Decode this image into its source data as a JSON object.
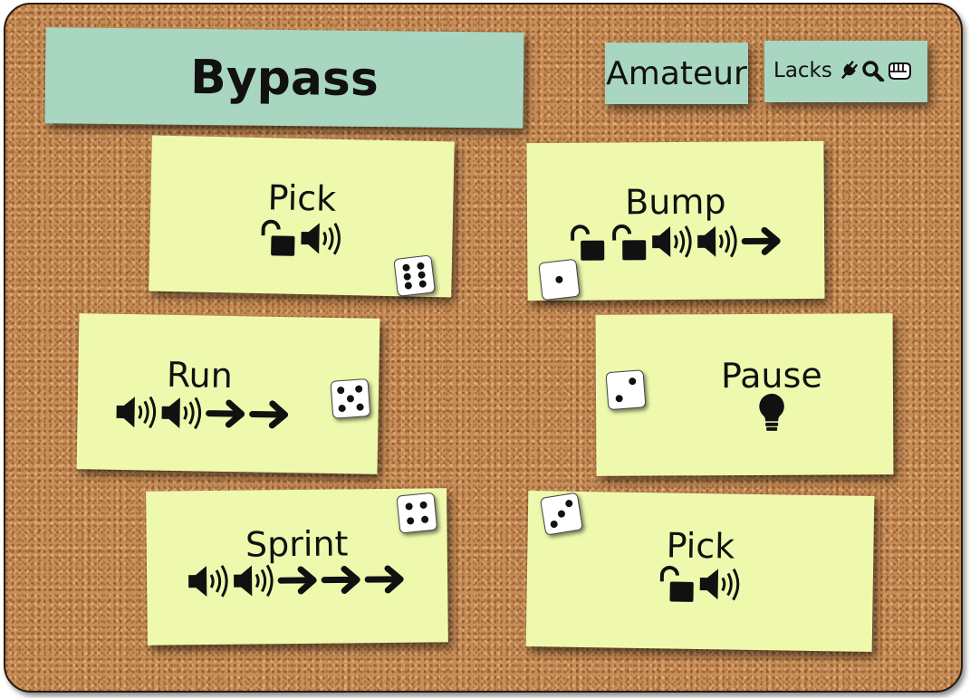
{
  "header": {
    "title": "Bypass"
  },
  "badges": {
    "level": "Amateur",
    "lacks": {
      "label": "Lacks",
      "icons": [
        "plug-icon",
        "magnifier-icon",
        "fist-icon"
      ]
    }
  },
  "cards": [
    {
      "name": "Pick",
      "icons": [
        "unlocked-icon",
        "sound-icon"
      ],
      "die": 6
    },
    {
      "name": "Bump",
      "icons": [
        "unlocked-icon",
        "unlocked-icon",
        "sound-icon",
        "sound-icon",
        "arrow-right-icon"
      ],
      "die": 1
    },
    {
      "name": "Run",
      "icons": [
        "sound-icon",
        "sound-icon",
        "arrow-right-icon",
        "arrow-right-icon"
      ],
      "die": 5
    },
    {
      "name": "Pause",
      "icons": [
        "lightbulb-icon"
      ],
      "die": 2
    },
    {
      "name": "Sprint",
      "icons": [
        "sound-icon",
        "sound-icon",
        "arrow-right-icon",
        "arrow-right-icon",
        "arrow-right-icon"
      ],
      "die": 4
    },
    {
      "name": "Pick",
      "icons": [
        "unlocked-icon",
        "sound-icon"
      ],
      "die": 3
    }
  ]
}
